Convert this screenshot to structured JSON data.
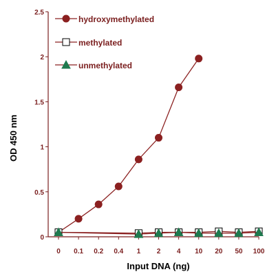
{
  "chart_data": {
    "type": "line",
    "title": "",
    "xlabel": "Input DNA (ng)",
    "ylabel": "OD 450 nm",
    "categories": [
      "0",
      "0.1",
      "0.2",
      "0.4",
      "1",
      "2",
      "4",
      "10",
      "20",
      "50",
      "100"
    ],
    "ylim": [
      0,
      2.5
    ],
    "yticks": [
      "0",
      "0.5",
      "1",
      "1.5",
      "2",
      "2.5"
    ],
    "grid": false,
    "legend_position": "top-left",
    "series": [
      {
        "name": "hydroxymethylated",
        "marker": "circle",
        "color": "#8b2020",
        "values": [
          0.05,
          0.2,
          0.36,
          0.56,
          0.86,
          1.1,
          1.66,
          1.98,
          null,
          null,
          null
        ]
      },
      {
        "name": "methylated",
        "marker": "square",
        "color": "#000000",
        "values": [
          0.05,
          null,
          null,
          null,
          0.04,
          0.05,
          0.05,
          0.05,
          0.06,
          0.05,
          0.06
        ]
      },
      {
        "name": "unmethylated",
        "marker": "triangle",
        "color": "#1f7a4f",
        "values": [
          0.05,
          null,
          null,
          null,
          0.03,
          0.04,
          0.05,
          0.04,
          0.04,
          0.04,
          0.05
        ]
      }
    ]
  },
  "colors": {
    "axis": "#7a1e1e",
    "text": "#7a1e1e",
    "hydroxymethylated": "#8b2020",
    "methylated_line": "#8b2020",
    "unmethylated_line": "#8b2020",
    "unmethylated_fill": "#1f7a4f"
  }
}
